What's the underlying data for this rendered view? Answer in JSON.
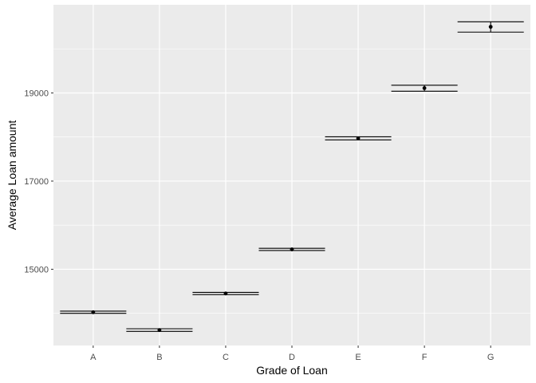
{
  "chart_data": {
    "type": "scatter",
    "xlabel": "Grade of Loan",
    "ylabel": "Average Loan amount",
    "categories": [
      "A",
      "B",
      "C",
      "D",
      "E",
      "F",
      "G"
    ],
    "series": [
      {
        "values": [
          14025,
          13620,
          14450,
          15450,
          17970,
          19110,
          20500
        ],
        "error_low": [
          14000,
          13590,
          14425,
          15425,
          17935,
          19040,
          20380
        ],
        "error_high": [
          14050,
          13650,
          14475,
          15475,
          18005,
          19175,
          20615
        ]
      }
    ],
    "yticks": [
      15000,
      17000,
      19000
    ],
    "ytick_labels": [
      "15000",
      "17000",
      "19000"
    ],
    "ylim": [
      13270,
      21000
    ],
    "grid": true,
    "colors": {
      "panel": "#ebebeb",
      "grid_major": "#ffffff",
      "point": "#000000",
      "error_bar": "#000000"
    }
  }
}
